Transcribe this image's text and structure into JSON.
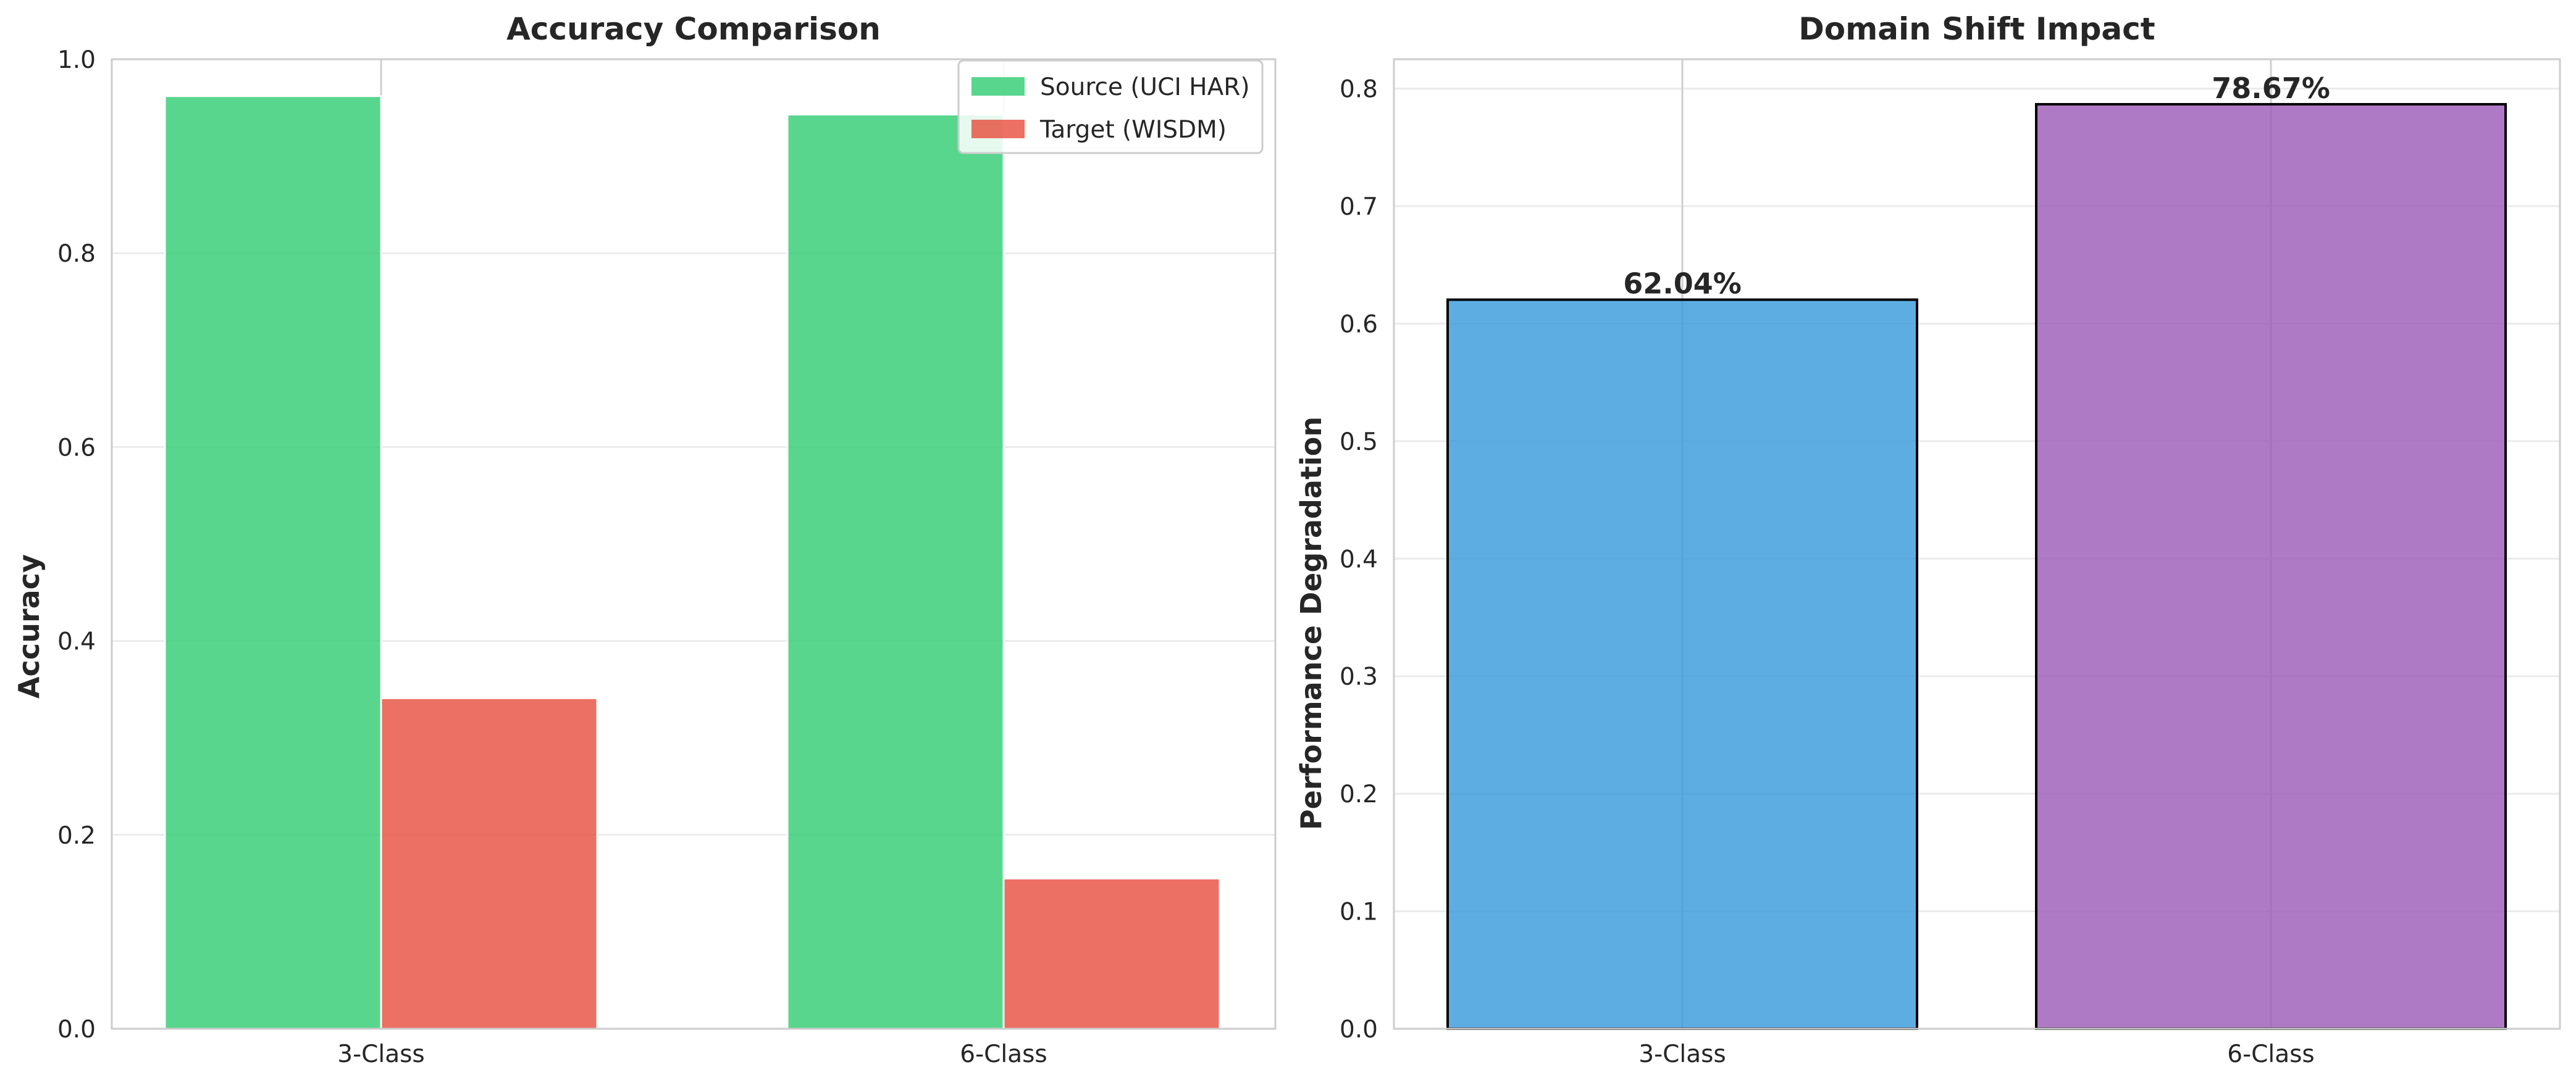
{
  "chart_data": [
    {
      "type": "bar",
      "title": "Accuracy Comparison",
      "xlabel": "",
      "ylabel": "Accuracy",
      "categories": [
        "3-Class",
        "6-Class"
      ],
      "series": [
        {
          "name": "Source (UCI HAR)",
          "color": "#2ecc71",
          "values": [
            0.962,
            0.943
          ]
        },
        {
          "name": "Target (WISDM)",
          "color": "#e74c3c",
          "values": [
            0.341,
            0.155
          ]
        }
      ],
      "ylim": [
        0.0,
        1.0
      ],
      "yticks": [
        "0.0",
        "0.2",
        "0.4",
        "0.6",
        "0.8",
        "1.0"
      ],
      "grid": true,
      "legend": "top-right"
    },
    {
      "type": "bar",
      "title": "Domain Shift Impact",
      "xlabel": "",
      "ylabel": "Performance Degradation",
      "categories": [
        "3-Class",
        "6-Class"
      ],
      "values": [
        0.6204,
        0.7867
      ],
      "colors": [
        "#3498db",
        "#9b59b6"
      ],
      "data_labels": [
        "62.04%",
        "78.67%"
      ],
      "ylim": [
        0.0,
        0.825
      ],
      "yticks": [
        "0.0",
        "0.1",
        "0.2",
        "0.3",
        "0.4",
        "0.5",
        "0.6",
        "0.7",
        "0.8"
      ],
      "grid": true,
      "legend": "none"
    }
  ]
}
